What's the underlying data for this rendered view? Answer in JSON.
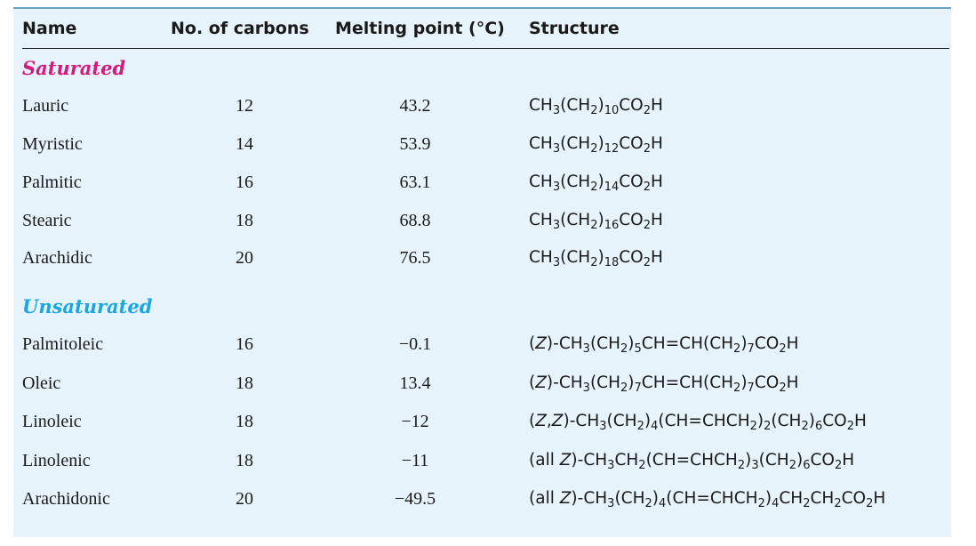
{
  "headers": {
    "name": "Name",
    "carbons": "No. of carbons",
    "melting": "Melting point (°C)",
    "structure": "Structure"
  },
  "sections": [
    {
      "label": "Saturated",
      "color": "#d6197c",
      "rows": [
        {
          "name": "Lauric",
          "carbons": "12",
          "melting": "43.2",
          "structure": "CH_3(CH_2)_10CO_2H"
        },
        {
          "name": "Myristic",
          "carbons": "14",
          "melting": "53.9",
          "structure": "CH_3(CH_2)_12CO_2H"
        },
        {
          "name": "Palmitic",
          "carbons": "16",
          "melting": "63.1",
          "structure": "CH_3(CH_2)_14CO_2H"
        },
        {
          "name": "Stearic",
          "carbons": "18",
          "melting": "68.8",
          "structure": "CH_3(CH_2)_16CO_2H"
        },
        {
          "name": "Arachidic",
          "carbons": "20",
          "melting": "76.5",
          "structure": "CH_3(CH_2)_18CO_2H"
        }
      ]
    },
    {
      "label": "Unsaturated",
      "color": "#1aa7e0",
      "rows": [
        {
          "name": "Palmitoleic",
          "carbons": "16",
          "melting": "−0.1",
          "structure": "(Z)-CH_3(CH_2)_5CH=CH(CH_2)_7CO_2H"
        },
        {
          "name": "Oleic",
          "carbons": "18",
          "melting": "13.4",
          "structure": "(Z)-CH_3(CH_2)_7CH=CH(CH_2)_7CO_2H"
        },
        {
          "name": "Linoleic",
          "carbons": "18",
          "melting": "−12",
          "structure": "(Z,Z)-CH_3(CH_2)_4(CH=CHCH_2)_2(CH_2)_6CO_2H"
        },
        {
          "name": "Linolenic",
          "carbons": "18",
          "melting": "−11",
          "structure": "(all Z)-CH_3CH_2(CH=CHCH_2)_3(CH_2)_6CO_2H"
        },
        {
          "name": "Arachidonic",
          "carbons": "20",
          "melting": "−49.5",
          "structure": "(all Z)-CH_3(CH_2)_4(CH=CHCH_2)_4CH_2CH_2CO_2H"
        }
      ]
    }
  ]
}
